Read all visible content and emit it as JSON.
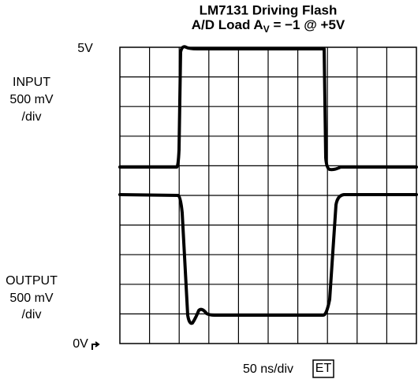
{
  "title": {
    "line1": "LM7131 Driving Flash",
    "line2": {
      "before": "A/D Load A",
      "sub": "V",
      "after": " = −1 @ +5V"
    }
  },
  "labels": {
    "top_level": "5V",
    "bottom_level": "0V",
    "input": [
      "INPUT",
      "500 mV",
      "/div"
    ],
    "output": [
      "OUTPUT",
      "500 mV",
      "/div"
    ],
    "timebase": "50 ns/div",
    "badge": "ET"
  }
}
